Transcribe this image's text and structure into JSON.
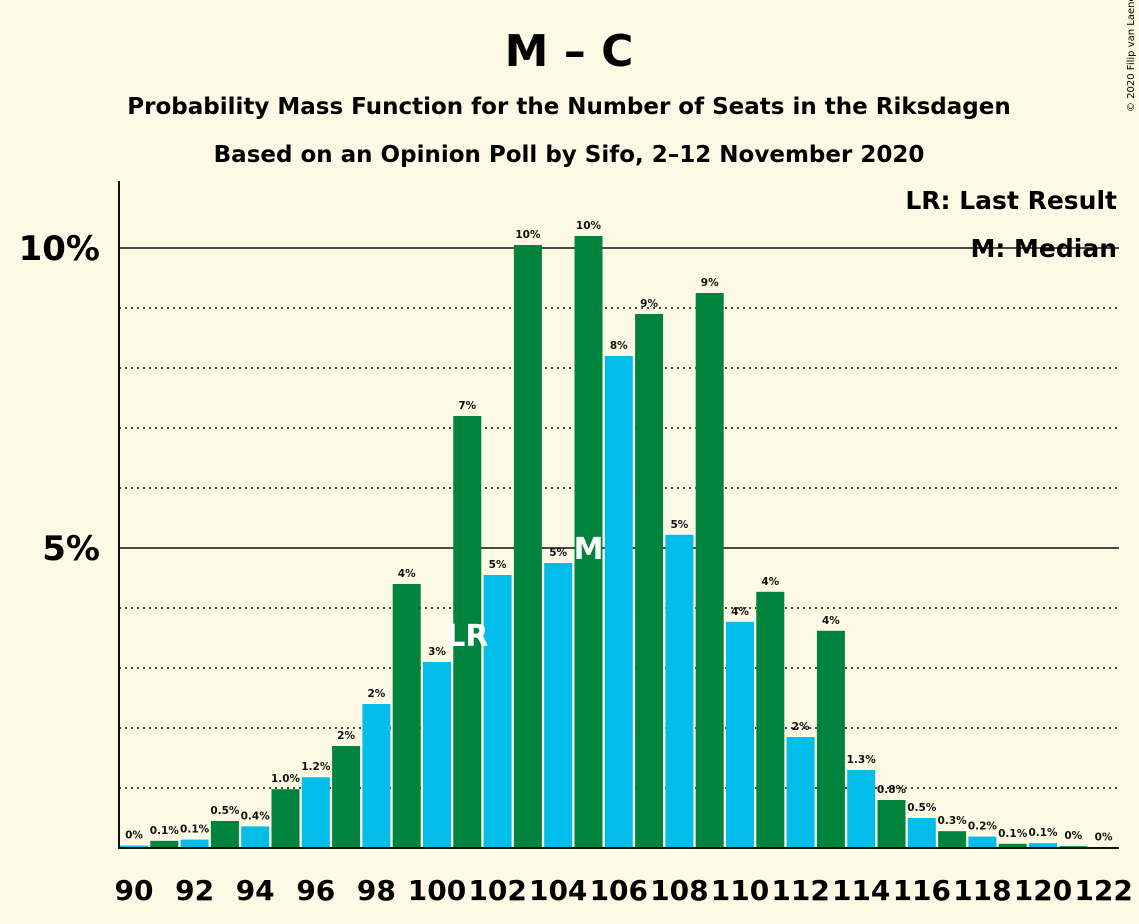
{
  "title": "M – C",
  "subtitle1": "Probability Mass Function for the Number of Seats in the Riksdagen",
  "subtitle2": "Based on an Opinion Poll by Sifo, 2–12 November 2020",
  "copyright": "© 2020 Filip van Laenen",
  "legend": {
    "last_result": "LR: Last Result",
    "median": "M: Median"
  },
  "colors": {
    "background": "#FEF9E4",
    "green": "#00843D",
    "blue": "#00BDEA",
    "axis": "#111111"
  },
  "chart_data": {
    "type": "bar",
    "title": "M – C",
    "xlabel": "",
    "ylabel": "",
    "ylim": [
      0,
      11.1
    ],
    "grid": "dotted lines every 1%, solid lines at 5% and 10%",
    "legend_position": "top-right",
    "y_ticks": [
      {
        "value": 5,
        "label": "5%"
      },
      {
        "value": 10,
        "label": "10%"
      }
    ],
    "x_tick_labels": [
      "90",
      "92",
      "94",
      "96",
      "98",
      "100",
      "102",
      "104",
      "106",
      "108",
      "110",
      "112",
      "114",
      "116",
      "118",
      "120",
      "122"
    ],
    "seats": [
      90,
      91,
      92,
      93,
      94,
      95,
      96,
      97,
      98,
      99,
      100,
      101,
      102,
      103,
      104,
      105,
      106,
      107,
      108,
      109,
      110,
      111,
      112,
      113,
      114,
      115,
      116,
      117,
      118,
      119,
      120,
      121,
      122
    ],
    "values": [
      0.04,
      0.12,
      0.14,
      0.45,
      0.36,
      0.98,
      1.18,
      1.7,
      2.4,
      4.4,
      3.1,
      7.2,
      4.55,
      10.05,
      4.75,
      10.2,
      8.2,
      8.9,
      5.22,
      9.25,
      3.77,
      4.27,
      1.85,
      3.62,
      1.3,
      0.8,
      0.5,
      0.28,
      0.19,
      0.07,
      0.08,
      0.03,
      0.01
    ],
    "labels": [
      "0%",
      "0.1%",
      "0.1%",
      "0.5%",
      "0.4%",
      "1.0%",
      "1.2%",
      "2%",
      "2%",
      "4%",
      "3%",
      "7%",
      "5%",
      "10%",
      "5%",
      "10%",
      "8%",
      "9%",
      "5%",
      "9%",
      "4%",
      "4%",
      "2%",
      "4%",
      "1.3%",
      "0.8%",
      "0.5%",
      "0.3%",
      "0.2%",
      "0.1%",
      "0.1%",
      "0%",
      "0%"
    ],
    "last_result": {
      "seat": 101,
      "label": "LR"
    },
    "median": {
      "seat": 105,
      "label": "M"
    }
  }
}
